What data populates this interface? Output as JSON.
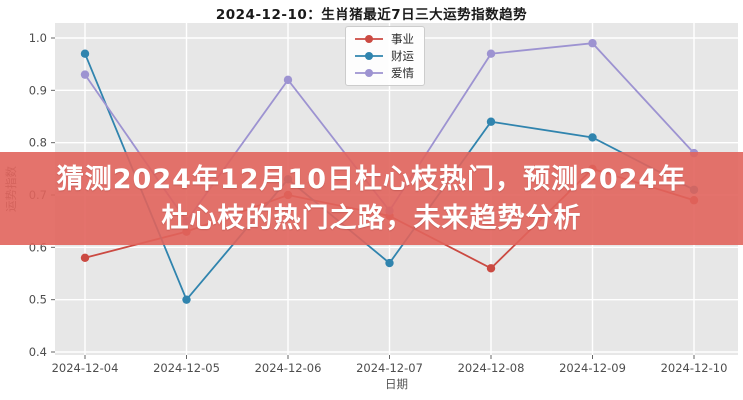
{
  "page": {
    "title": "2024-12-10：生肖猪最近7日三大运势指数趋势"
  },
  "overlay": {
    "line1": "猜测2024年12月10日杜心枝热门，预测2024年",
    "line2": "杜心枝的热门之路，未来趋势分析",
    "background_color": "#e1645c",
    "opacity": 0.9,
    "text_color": "#ffffff"
  },
  "chart_data": {
    "type": "line",
    "title": "2024-12-10：生肖猪最近7日三大运势指数趋势",
    "xlabel": "日期",
    "ylabel": "运势指数",
    "x": [
      "2024-12-04",
      "2024-12-05",
      "2024-12-06",
      "2024-12-07",
      "2024-12-08",
      "2024-12-09",
      "2024-12-10"
    ],
    "series": [
      {
        "name": "事业",
        "slug": "career",
        "color": "#cb4a42",
        "values": [
          0.58,
          0.63,
          0.7,
          0.66,
          0.56,
          0.75,
          0.69
        ]
      },
      {
        "name": "财运",
        "slug": "wealth",
        "color": "#3084ae",
        "values": [
          0.97,
          0.5,
          0.73,
          0.57,
          0.84,
          0.81,
          0.71
        ]
      },
      {
        "name": "爱情",
        "slug": "love",
        "color": "#9d93d1",
        "values": [
          0.93,
          0.65,
          0.92,
          0.67,
          0.97,
          0.99,
          0.78
        ]
      }
    ],
    "ylim": [
      0.4,
      1.0
    ],
    "yticks": [
      0.4,
      0.5,
      0.6,
      0.7,
      0.8,
      0.9,
      1.0
    ],
    "grid": true,
    "plot_background": "#e7e7e7",
    "gridline_color": "#ffffff",
    "tick_label_color": "#4d4d4d",
    "axis_label_color": "#555555",
    "legend_position": "top-center"
  }
}
